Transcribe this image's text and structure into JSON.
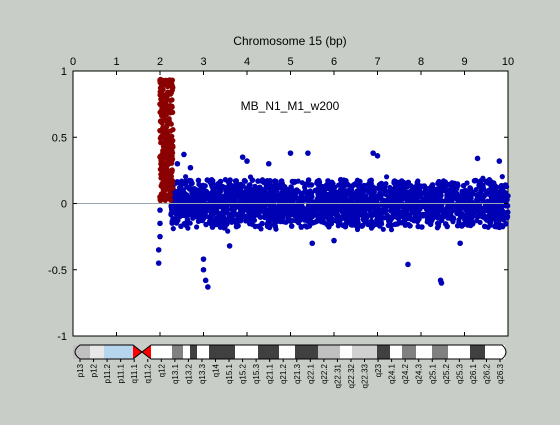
{
  "chart_data": {
    "type": "scatter",
    "title": "Chromosome 15 (bp)",
    "annotation": "MB_N1_M1_w200",
    "xlabel": "Chromosome 15 (bp)",
    "ylabel": "",
    "xlim": [
      0,
      10
    ],
    "ylim": [
      -1,
      1
    ],
    "x_ticks": [
      "0",
      "1",
      "2",
      "3",
      "4",
      "5",
      "6",
      "7",
      "8",
      "9",
      "10"
    ],
    "y_ticks": [
      "1",
      "0.5",
      "0",
      "-0.5",
      "-1"
    ],
    "grid": false,
    "series": [
      {
        "color": "#8b0000",
        "x_range": [
          1.95,
          2.3
        ],
        "points": [
          [
            2.0,
            0.93
          ],
          [
            2.05,
            0.88
          ],
          [
            2.1,
            0.92
          ],
          [
            2.2,
            0.9
          ],
          [
            2.28,
            0.93
          ],
          [
            2.0,
            0.75
          ],
          [
            2.1,
            0.7
          ],
          [
            2.15,
            0.8
          ],
          [
            2.25,
            0.72
          ],
          [
            2.0,
            0.55
          ],
          [
            2.05,
            0.5
          ],
          [
            2.15,
            0.58
          ],
          [
            2.25,
            0.45
          ],
          [
            2.0,
            0.35
          ],
          [
            2.1,
            0.3
          ],
          [
            2.2,
            0.38
          ],
          [
            2.05,
            0.15
          ],
          [
            2.1,
            0.1
          ],
          [
            2.0,
            0.05
          ],
          [
            2.15,
            0.2
          ]
        ]
      },
      {
        "color": "#0000b4",
        "x_range": [
          1.95,
          10.0
        ],
        "points": [
          [
            1.97,
            -0.45
          ],
          [
            1.97,
            -0.35
          ],
          [
            2.0,
            -0.25
          ],
          [
            2.0,
            -0.15
          ],
          [
            2.0,
            -0.05
          ],
          [
            2.4,
            0.3
          ],
          [
            2.55,
            0.37
          ],
          [
            2.7,
            0.27
          ],
          [
            3.0,
            -0.5
          ],
          [
            3.05,
            -0.58
          ],
          [
            3.1,
            -0.63
          ],
          [
            3.0,
            -0.42
          ],
          [
            3.9,
            0.35
          ],
          [
            4.0,
            0.32
          ],
          [
            4.5,
            0.3
          ],
          [
            5.0,
            0.38
          ],
          [
            5.4,
            0.38
          ],
          [
            5.5,
            -0.3
          ],
          [
            6.9,
            0.38
          ],
          [
            7.0,
            0.36
          ],
          [
            7.7,
            -0.46
          ],
          [
            8.45,
            -0.58
          ],
          [
            8.47,
            -0.6
          ],
          [
            9.3,
            0.34
          ],
          [
            9.8,
            0.32
          ],
          [
            3.6,
            -0.32
          ],
          [
            6.0,
            -0.28
          ],
          [
            8.9,
            -0.3
          ]
        ],
        "band": [
          -0.25,
          0.25
        ]
      }
    ]
  },
  "ideogram": {
    "bands": [
      "p13",
      "p12",
      "p11.2",
      "p11.1",
      "q11.1",
      "q11.2",
      "q12",
      "q13.1",
      "q13.2",
      "q13.3",
      "q14",
      "q15.1",
      "q15.2",
      "q15.3",
      "q21.1",
      "q21.2",
      "q21.3",
      "q22.1",
      "q22.2",
      "q22.31",
      "q22.32",
      "q22.33",
      "q23",
      "q24.1",
      "q24.2",
      "q24.3",
      "q25.1",
      "q25.2",
      "q25.3",
      "q26.1",
      "q26.2",
      "q26.3"
    ]
  }
}
